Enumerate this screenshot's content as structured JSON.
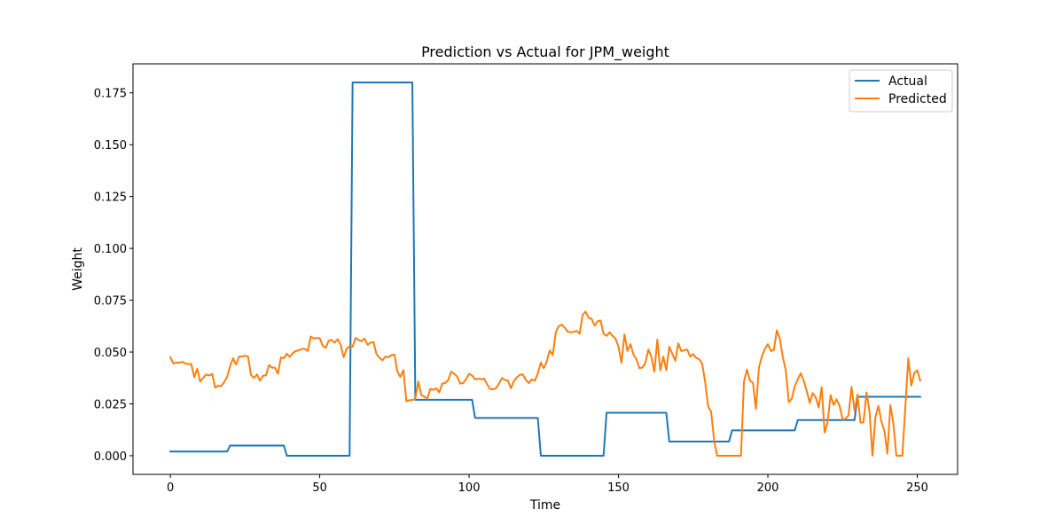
{
  "chart_data": {
    "type": "line",
    "title": "Prediction vs Actual for JPM_weight",
    "xlabel": "Time",
    "ylabel": "Weight",
    "xlim": [
      -12.5,
      263.5
    ],
    "ylim": [
      -0.009,
      0.189
    ],
    "x_ticks": [
      0,
      50,
      100,
      150,
      200,
      250
    ],
    "y_ticks": [
      0.0,
      0.025,
      0.05,
      0.075,
      0.1,
      0.125,
      0.15,
      0.175
    ],
    "x_tick_labels": [
      "0",
      "50",
      "100",
      "150",
      "200",
      "250"
    ],
    "y_tick_labels": [
      "0.000",
      "0.025",
      "0.050",
      "0.075",
      "0.100",
      "0.125",
      "0.150",
      "0.175"
    ],
    "grid": false,
    "legend": {
      "position": "top-right",
      "entries": [
        "Actual",
        "Predicted"
      ]
    },
    "series": [
      {
        "name": "Actual",
        "color": "#1f77b4",
        "points": [
          [
            0,
            0.002
          ],
          [
            19,
            0.002
          ],
          [
            20,
            0.0049
          ],
          [
            38,
            0.0049
          ],
          [
            39,
            0
          ],
          [
            60,
            0
          ],
          [
            61,
            0.18
          ],
          [
            81,
            0.18
          ],
          [
            82,
            0.027
          ],
          [
            101,
            0.027
          ],
          [
            102,
            0.0182
          ],
          [
            123,
            0.0182
          ],
          [
            124,
            0
          ],
          [
            145,
            0
          ],
          [
            146,
            0.0207
          ],
          [
            166,
            0.0207
          ],
          [
            167,
            0.0068
          ],
          [
            187,
            0.0068
          ],
          [
            188,
            0.0122
          ],
          [
            209,
            0.0122
          ],
          [
            210,
            0.0172
          ],
          [
            229,
            0.0172
          ],
          [
            230,
            0.0284
          ],
          [
            251,
            0.0284
          ]
        ]
      },
      {
        "name": "Predicted",
        "color": "#ff7f0e",
        "points": [
          [
            0,
            0.0475
          ],
          [
            1,
            0.0445
          ],
          [
            2,
            0.045
          ],
          [
            3,
            0.0448
          ],
          [
            4,
            0.0453
          ],
          [
            5,
            0.0445
          ],
          [
            6,
            0.0442
          ],
          [
            7,
            0.0443
          ],
          [
            8,
            0.0378
          ],
          [
            9,
            0.042
          ],
          [
            10,
            0.0358
          ],
          [
            11,
            0.0375
          ],
          [
            12,
            0.0392
          ],
          [
            13,
            0.0387
          ],
          [
            14,
            0.0395
          ],
          [
            15,
            0.0328
          ],
          [
            16,
            0.0338
          ],
          [
            17,
            0.0335
          ],
          [
            18,
            0.0355
          ],
          [
            19,
            0.038
          ],
          [
            20,
            0.0432
          ],
          [
            21,
            0.047
          ],
          [
            22,
            0.044
          ],
          [
            23,
            0.0478
          ],
          [
            24,
            0.0478
          ],
          [
            25,
            0.0482
          ],
          [
            26,
            0.0478
          ],
          [
            27,
            0.039
          ],
          [
            28,
            0.0375
          ],
          [
            29,
            0.0392
          ],
          [
            30,
            0.0362
          ],
          [
            31,
            0.0385
          ],
          [
            32,
            0.0388
          ],
          [
            33,
            0.0437
          ],
          [
            34,
            0.0425
          ],
          [
            35,
            0.0425
          ],
          [
            36,
            0.0395
          ],
          [
            37,
            0.0474
          ],
          [
            38,
            0.047
          ],
          [
            39,
            0.0492
          ],
          [
            40,
            0.0477
          ],
          [
            41,
            0.0495
          ],
          [
            42,
            0.0505
          ],
          [
            43,
            0.0508
          ],
          [
            44,
            0.0515
          ],
          [
            45,
            0.0515
          ],
          [
            46,
            0.0505
          ],
          [
            47,
            0.0575
          ],
          [
            48,
            0.0565
          ],
          [
            49,
            0.0568
          ],
          [
            50,
            0.0567
          ],
          [
            51,
            0.053
          ],
          [
            52,
            0.052
          ],
          [
            53,
            0.0555
          ],
          [
            54,
            0.0558
          ],
          [
            55,
            0.0545
          ],
          [
            56,
            0.0562
          ],
          [
            57,
            0.0535
          ],
          [
            58,
            0.0475
          ],
          [
            59,
            0.0515
          ],
          [
            60,
            0.0528
          ],
          [
            61,
            0.0525
          ],
          [
            62,
            0.0568
          ],
          [
            63,
            0.0558
          ],
          [
            64,
            0.0552
          ],
          [
            65,
            0.0565
          ],
          [
            66,
            0.0535
          ],
          [
            67,
            0.0545
          ],
          [
            68,
            0.0548
          ],
          [
            69,
            0.049
          ],
          [
            70,
            0.0472
          ],
          [
            71,
            0.046
          ],
          [
            72,
            0.0478
          ],
          [
            73,
            0.0475
          ],
          [
            74,
            0.0485
          ],
          [
            75,
            0.0488
          ],
          [
            76,
            0.0405
          ],
          [
            77,
            0.038
          ],
          [
            78,
            0.0413
          ],
          [
            79,
            0.0262
          ],
          [
            80,
            0.0268
          ],
          [
            81,
            0.0268
          ],
          [
            82,
            0.0275
          ],
          [
            83,
            0.0358
          ],
          [
            84,
            0.0292
          ],
          [
            85,
            0.0285
          ],
          [
            86,
            0.0275
          ],
          [
            87,
            0.0322
          ],
          [
            88,
            0.0318
          ],
          [
            89,
            0.0325
          ],
          [
            90,
            0.0305
          ],
          [
            91,
            0.0348
          ],
          [
            92,
            0.035
          ],
          [
            93,
            0.0365
          ],
          [
            94,
            0.0405
          ],
          [
            95,
            0.0395
          ],
          [
            96,
            0.0382
          ],
          [
            97,
            0.0348
          ],
          [
            98,
            0.035
          ],
          [
            99,
            0.037
          ],
          [
            100,
            0.0395
          ],
          [
            101,
            0.0387
          ],
          [
            102,
            0.0368
          ],
          [
            103,
            0.0372
          ],
          [
            104,
            0.0368
          ],
          [
            105,
            0.0372
          ],
          [
            106,
            0.0345
          ],
          [
            107,
            0.0322
          ],
          [
            108,
            0.032
          ],
          [
            109,
            0.0325
          ],
          [
            110,
            0.0348
          ],
          [
            111,
            0.0375
          ],
          [
            112,
            0.0365
          ],
          [
            113,
            0.0362
          ],
          [
            114,
            0.0325
          ],
          [
            115,
            0.036
          ],
          [
            116,
            0.0378
          ],
          [
            117,
            0.039
          ],
          [
            118,
            0.0392
          ],
          [
            119,
            0.0365
          ],
          [
            120,
            0.035
          ],
          [
            121,
            0.0368
          ],
          [
            122,
            0.0362
          ],
          [
            123,
            0.0397
          ],
          [
            124,
            0.045
          ],
          [
            125,
            0.0422
          ],
          [
            126,
            0.0455
          ],
          [
            127,
            0.0508
          ],
          [
            128,
            0.0485
          ],
          [
            129,
            0.0595
          ],
          [
            130,
            0.0625
          ],
          [
            131,
            0.0632
          ],
          [
            132,
            0.0618
          ],
          [
            133,
            0.0598
          ],
          [
            134,
            0.0595
          ],
          [
            135,
            0.0598
          ],
          [
            136,
            0.0602
          ],
          [
            137,
            0.0588
          ],
          [
            138,
            0.068
          ],
          [
            139,
            0.0695
          ],
          [
            140,
            0.0665
          ],
          [
            141,
            0.066
          ],
          [
            142,
            0.0628
          ],
          [
            143,
            0.0648
          ],
          [
            144,
            0.0652
          ],
          [
            145,
            0.0588
          ],
          [
            146,
            0.0578
          ],
          [
            147,
            0.0595
          ],
          [
            148,
            0.0578
          ],
          [
            149,
            0.0565
          ],
          [
            150,
            0.0525
          ],
          [
            151,
            0.0448
          ],
          [
            152,
            0.0585
          ],
          [
            153,
            0.0505
          ],
          [
            154,
            0.0538
          ],
          [
            155,
            0.0488
          ],
          [
            156,
            0.0465
          ],
          [
            157,
            0.0422
          ],
          [
            158,
            0.0425
          ],
          [
            159,
            0.0447
          ],
          [
            160,
            0.0512
          ],
          [
            161,
            0.0478
          ],
          [
            162,
            0.0405
          ],
          [
            163,
            0.056
          ],
          [
            164,
            0.0412
          ],
          [
            165,
            0.0478
          ],
          [
            166,
            0.0412
          ],
          [
            167,
            0.0525
          ],
          [
            168,
            0.0492
          ],
          [
            169,
            0.0458
          ],
          [
            170,
            0.0542
          ],
          [
            171,
            0.0505
          ],
          [
            172,
            0.0508
          ],
          [
            173,
            0.0512
          ],
          [
            174,
            0.0478
          ],
          [
            175,
            0.049
          ],
          [
            176,
            0.0472
          ],
          [
            177,
            0.0465
          ],
          [
            178,
            0.0445
          ],
          [
            179,
            0.0355
          ],
          [
            180,
            0.0238
          ],
          [
            181,
            0.0212
          ],
          [
            182,
            0.0075
          ],
          [
            183,
            0
          ],
          [
            184,
            0
          ],
          [
            185,
            0
          ],
          [
            186,
            0
          ],
          [
            187,
            0
          ],
          [
            188,
            0
          ],
          [
            189,
            0
          ],
          [
            190,
            0
          ],
          [
            191,
            0
          ],
          [
            192,
            0.0358
          ],
          [
            193,
            0.0415
          ],
          [
            194,
            0.0362
          ],
          [
            195,
            0.0352
          ],
          [
            196,
            0.0225
          ],
          [
            197,
            0.0425
          ],
          [
            198,
            0.048
          ],
          [
            199,
            0.0515
          ],
          [
            200,
            0.0538
          ],
          [
            201,
            0.0505
          ],
          [
            202,
            0.051
          ],
          [
            203,
            0.0605
          ],
          [
            204,
            0.0565
          ],
          [
            205,
            0.0475
          ],
          [
            206,
            0.0412
          ],
          [
            207,
            0.0258
          ],
          [
            208,
            0.0275
          ],
          [
            209,
            0.0335
          ],
          [
            210,
            0.0368
          ],
          [
            211,
            0.0398
          ],
          [
            212,
            0.0362
          ],
          [
            213,
            0.0312
          ],
          [
            214,
            0.0255
          ],
          [
            215,
            0.0302
          ],
          [
            216,
            0.0282
          ],
          [
            217,
            0.0232
          ],
          [
            218,
            0.033
          ],
          [
            219,
            0.0112
          ],
          [
            220,
            0.0162
          ],
          [
            221,
            0.0292
          ],
          [
            222,
            0.0245
          ],
          [
            223,
            0.0272
          ],
          [
            224,
            0.024
          ],
          [
            225,
            0.0175
          ],
          [
            226,
            0.0178
          ],
          [
            227,
            0.0195
          ],
          [
            228,
            0.0332
          ],
          [
            229,
            0.0215
          ],
          [
            230,
            0.0295
          ],
          [
            231,
            0.016
          ],
          [
            232,
            0.016
          ],
          [
            233,
            0.0305
          ],
          [
            234,
            0.0215
          ],
          [
            235,
            0
          ],
          [
            236,
            0.0185
          ],
          [
            237,
            0.024
          ],
          [
            238,
            0.0165
          ],
          [
            239,
            0.012
          ],
          [
            240,
            0.001
          ],
          [
            241,
            0.0245
          ],
          [
            242,
            0.0155
          ],
          [
            243,
            0
          ],
          [
            244,
            0
          ],
          [
            245,
            0
          ],
          [
            246,
            0.0232
          ],
          [
            247,
            0.047
          ],
          [
            248,
            0.0338
          ],
          [
            249,
            0.0398
          ],
          [
            250,
            0.0412
          ],
          [
            251,
            0.0362
          ]
        ]
      }
    ]
  }
}
